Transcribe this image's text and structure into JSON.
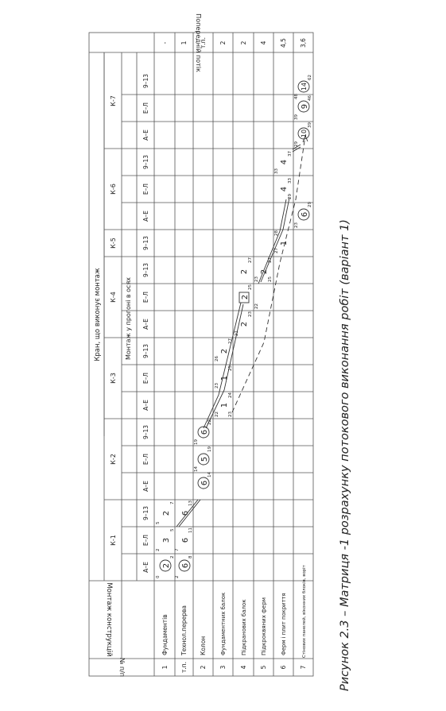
{
  "caption": "Рисунок 2.3 – Матриця -1 розрахунку потокового виконання робіт (варіант 1)",
  "header": {
    "num": "№ п/п",
    "construction": "Монтаж конструкцій",
    "crane": "Кран, що виконує монтаж",
    "prev_flow": "Попередній потік",
    "span_mount": "Монтаж у прогоні в осях"
  },
  "cranes": [
    "К-1",
    "К-2",
    "К-3",
    "К-4",
    "К-5",
    "К-6",
    "К-7"
  ],
  "axes": [
    "А–Е",
    "Е–Л",
    "9–13"
  ],
  "rows": [
    {
      "n": "1",
      "name": "Фундаментів",
      "prev": "-"
    },
    {
      "n": "т.п.",
      "name": "Технол.перерва",
      "prev": "1"
    },
    {
      "n": "2",
      "name": "Колон",
      "prev": "т.п."
    },
    {
      "n": "3",
      "name": "Фундаментних балок",
      "prev": "2"
    },
    {
      "n": "4",
      "name": "Підкранових балок",
      "prev": "2"
    },
    {
      "n": "5",
      "name": "Підкроквяних ферм",
      "prev": "4"
    },
    {
      "n": "6",
      "name": "Ферм і плит покриття",
      "prev": "4,5"
    },
    {
      "n": "7",
      "name": "Стінових панелей, віконних блоків, воріт",
      "prev": "3,6"
    }
  ],
  "cells": {
    "r1_a": "2",
    "r1_b": "3",
    "r1_c": "2",
    "r1_t0": "0",
    "r1_t2a": "2",
    "r1_t2b": "2",
    "r1_t5a": "5",
    "r1_t5b": "5",
    "r1_t7": "7",
    "rtp_a": "6",
    "rtp_b": "6",
    "rtp_c": "6",
    "rtp_t2": "2",
    "rtp_t7": "7",
    "rtp_t8": "8",
    "rtp_t11": "11",
    "rtp_t13": "13",
    "r2_a": "6",
    "r2_b": "5",
    "r2_c": "6",
    "r2_t14": "14",
    "r2_t14b": "14",
    "r2_t19": "19",
    "r2_t19b": "19",
    "r2_t22": "22",
    "r3_a": "1",
    "r3_b": "1",
    "r3_c": "2",
    "r3_t22": "22",
    "r3_t23": "23",
    "r3_t23b": "23",
    "r3_t24": "24",
    "r3_t25": "25",
    "r3_t26": "26",
    "r3_t27": "27",
    "r4_a": "2",
    "r4_b": "2",
    "r4_c": "2",
    "r4_t21": "21",
    "r4_t23": "23",
    "r4_t25": "25",
    "r4_t27": "27",
    "r5_a": "2",
    "r5_t22": "22",
    "r5_t23": "23",
    "r5_t25": "25",
    "r5_t27": "27",
    "r6_c": "1",
    "r6_t27": "27",
    "r6_t28": "28",
    "r6_k6a": "4",
    "r6_k6b": "4",
    "r6_t29": "29",
    "r6_t33": "33",
    "r6_t33b": "33",
    "r6_t37": "37",
    "r7_k6": "6",
    "r7_t23": "23",
    "r7_t29": "29",
    "r7_k7a": "10",
    "r7_k7b": "9",
    "r7_k7c": "14",
    "r7_t29b": "29",
    "r7_t39": "39",
    "r7_t39b": "39",
    "r7_t46": "46",
    "r7_t48": "48",
    "r7_t62": "62"
  }
}
